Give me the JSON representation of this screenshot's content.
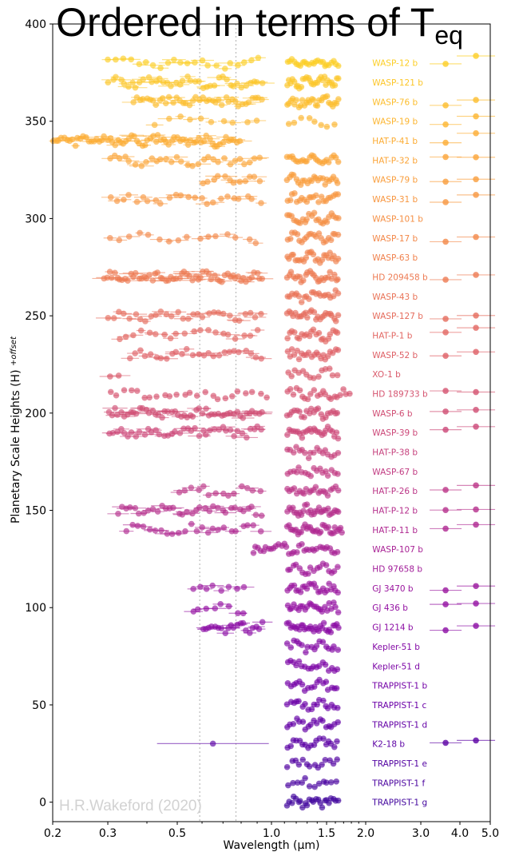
{
  "chart_data": {
    "type": "scatter",
    "title": "Ordered in terms of T",
    "title_subscript": "eq",
    "xlabel": "Wavelength (µm)",
    "ylabel": "Planetary Scale Heights (H)",
    "ylabel_subscript": "+offset",
    "watermark": "H.R.Wakeford (2020)",
    "x_scale": "log",
    "xlim": [
      0.2,
      5.0
    ],
    "ylim": [
      -10,
      400
    ],
    "x_ticks": [
      0.2,
      0.3,
      0.5,
      1.0,
      1.5,
      2.0,
      3.0,
      4.0,
      5.0
    ],
    "x_tick_labels": [
      "0.2",
      "0.3",
      "0.5",
      "1.0",
      "1.5",
      "2.0",
      "3.0",
      "4.0",
      "5.0"
    ],
    "y_ticks": [
      0,
      50,
      100,
      150,
      200,
      250,
      300,
      350,
      400
    ],
    "y_tick_labels": [
      "0",
      "50",
      "100",
      "150",
      "200",
      "250",
      "300",
      "350",
      "400"
    ],
    "grid": false,
    "reference_lines_x": [
      0.59,
      0.77
    ],
    "label_x": 2.1,
    "colormap": "plasma",
    "colormap_stops": [
      "#fcce25",
      "#fca636",
      "#f2844b",
      "#e16462",
      "#cc4778",
      "#b12a90",
      "#8f0da4",
      "#6a00a8",
      "#41049d"
    ],
    "spitzer_x": [
      3.6,
      4.5
    ],
    "series": [
      {
        "name": "WASP-12 b",
        "offset": 380,
        "segments": [
          [
            0.3,
            0.95,
            22
          ],
          [
            1.12,
            1.65,
            24
          ]
        ],
        "spitzer": true
      },
      {
        "name": "WASP-121 b",
        "offset": 370,
        "segments": [
          [
            0.3,
            0.95,
            40
          ],
          [
            1.12,
            1.65,
            30
          ]
        ],
        "spitzer": false
      },
      {
        "name": "WASP-76 b",
        "offset": 360,
        "segments": [
          [
            0.36,
            0.95,
            40
          ],
          [
            1.12,
            1.65,
            28
          ]
        ],
        "spitzer": true
      },
      {
        "name": "WASP-19 b",
        "offset": 350,
        "segments": [
          [
            0.42,
            0.95,
            10
          ],
          [
            1.12,
            1.65,
            8
          ]
        ],
        "spitzer": true
      },
      {
        "name": "HAT-P-41 b",
        "offset": 340,
        "segments": [
          [
            0.2,
            0.8,
            70
          ]
        ],
        "spitzer": true
      },
      {
        "name": "HAT-P-32 b",
        "offset": 330,
        "segments": [
          [
            0.3,
            0.95,
            30
          ],
          [
            1.12,
            1.65,
            24
          ]
        ],
        "spitzer": true
      },
      {
        "name": "WASP-79 b",
        "offset": 320,
        "segments": [
          [
            0.6,
            0.95,
            12
          ],
          [
            1.12,
            1.65,
            24
          ]
        ],
        "spitzer": true
      },
      {
        "name": "WASP-31 b",
        "offset": 310,
        "segments": [
          [
            0.3,
            0.95,
            24
          ],
          [
            1.12,
            1.65,
            22
          ]
        ],
        "spitzer": true
      },
      {
        "name": "WASP-101 b",
        "offset": 300,
        "segments": [
          [
            1.12,
            1.65,
            24
          ]
        ],
        "spitzer": false
      },
      {
        "name": "WASP-17 b",
        "offset": 290,
        "segments": [
          [
            0.3,
            0.95,
            16
          ],
          [
            1.12,
            1.65,
            22
          ]
        ],
        "spitzer": true
      },
      {
        "name": "WASP-63 b",
        "offset": 280,
        "segments": [
          [
            1.12,
            1.65,
            26
          ]
        ],
        "spitzer": false
      },
      {
        "name": "HD 209458 b",
        "offset": 270,
        "segments": [
          [
            0.29,
            0.95,
            60
          ],
          [
            1.12,
            1.65,
            26
          ]
        ],
        "spitzer": true
      },
      {
        "name": "WASP-43 b",
        "offset": 260,
        "segments": [
          [
            1.12,
            1.65,
            22
          ]
        ],
        "spitzer": false
      },
      {
        "name": "WASP-127 b",
        "offset": 250,
        "segments": [
          [
            0.3,
            0.95,
            30
          ],
          [
            1.12,
            1.65,
            26
          ]
        ],
        "spitzer": true
      },
      {
        "name": "HAT-P-1 b",
        "offset": 240,
        "segments": [
          [
            0.32,
            0.95,
            20
          ],
          [
            1.12,
            1.65,
            22
          ]
        ],
        "spitzer": true
      },
      {
        "name": "WASP-52 b",
        "offset": 230,
        "segments": [
          [
            0.35,
            0.95,
            26
          ],
          [
            1.12,
            1.65,
            22
          ]
        ],
        "spitzer": true
      },
      {
        "name": "XO-1 b",
        "offset": 220,
        "segments": [
          [
            0.3,
            0.35,
            2
          ],
          [
            1.12,
            1.65,
            14
          ]
        ],
        "spitzer": false
      },
      {
        "name": "HD 189733 b",
        "offset": 210,
        "segments": [
          [
            0.3,
            1.0,
            24
          ],
          [
            1.12,
            1.8,
            22
          ]
        ],
        "spitzer": true
      },
      {
        "name": "WASP-6 b",
        "offset": 200,
        "segments": [
          [
            0.3,
            0.95,
            50
          ],
          [
            1.12,
            1.65,
            22
          ]
        ],
        "spitzer": true
      },
      {
        "name": "WASP-39 b",
        "offset": 190,
        "segments": [
          [
            0.3,
            0.95,
            40
          ],
          [
            1.12,
            1.65,
            26
          ]
        ],
        "spitzer": true
      },
      {
        "name": "HAT-P-38 b",
        "offset": 180,
        "segments": [
          [
            1.12,
            1.65,
            18
          ]
        ],
        "spitzer": false
      },
      {
        "name": "WASP-67 b",
        "offset": 170,
        "segments": [
          [
            1.12,
            1.65,
            18
          ]
        ],
        "spitzer": false
      },
      {
        "name": "HAT-P-26 b",
        "offset": 160,
        "segments": [
          [
            0.5,
            0.95,
            14
          ],
          [
            1.12,
            1.65,
            22
          ]
        ],
        "spitzer": true
      },
      {
        "name": "HAT-P-12 b",
        "offset": 150,
        "segments": [
          [
            0.32,
            0.95,
            34
          ],
          [
            1.12,
            1.65,
            30
          ]
        ],
        "spitzer": true
      },
      {
        "name": "HAT-P-11 b",
        "offset": 140,
        "segments": [
          [
            0.34,
            0.95,
            24
          ],
          [
            1.12,
            1.7,
            32
          ]
        ],
        "spitzer": true
      },
      {
        "name": "WASP-107 b",
        "offset": 130,
        "segments": [
          [
            0.87,
            1.65,
            34
          ]
        ],
        "spitzer": false
      },
      {
        "name": "HD 97658 b",
        "offset": 120,
        "segments": [
          [
            1.12,
            1.65,
            18
          ]
        ],
        "spitzer": false
      },
      {
        "name": "GJ 3470 b",
        "offset": 110,
        "segments": [
          [
            0.55,
            0.85,
            8
          ],
          [
            1.12,
            1.65,
            24
          ]
        ],
        "spitzer": true
      },
      {
        "name": "GJ 436 b",
        "offset": 100,
        "segments": [
          [
            0.55,
            0.85,
            8
          ],
          [
            1.12,
            1.65,
            24
          ]
        ],
        "spitzer": true
      },
      {
        "name": "GJ 1214 b",
        "offset": 90,
        "segments": [
          [
            0.6,
            0.95,
            20
          ],
          [
            1.12,
            1.65,
            30
          ]
        ],
        "spitzer": true
      },
      {
        "name": "Kepler-51 b",
        "offset": 80,
        "segments": [
          [
            1.12,
            1.65,
            18
          ]
        ],
        "spitzer": false
      },
      {
        "name": "Kepler-51 d",
        "offset": 70,
        "segments": [
          [
            1.12,
            1.65,
            18
          ]
        ],
        "spitzer": false
      },
      {
        "name": "TRAPPIST-1 b",
        "offset": 60,
        "segments": [
          [
            1.12,
            1.65,
            18
          ]
        ],
        "spitzer": false
      },
      {
        "name": "TRAPPIST-1 c",
        "offset": 50,
        "segments": [
          [
            1.12,
            1.65,
            18
          ]
        ],
        "spitzer": false
      },
      {
        "name": "TRAPPIST-1 d",
        "offset": 40,
        "segments": [
          [
            1.12,
            1.65,
            18
          ]
        ],
        "spitzer": false
      },
      {
        "name": "K2-18 b",
        "offset": 30,
        "segments": [
          [
            0.65,
            0.65,
            1
          ],
          [
            1.12,
            1.65,
            18
          ]
        ],
        "spitzer": true
      },
      {
        "name": "TRAPPIST-1 e",
        "offset": 20,
        "segments": [
          [
            1.12,
            1.65,
            14
          ]
        ],
        "spitzer": false
      },
      {
        "name": "TRAPPIST-1 f",
        "offset": 10,
        "segments": [
          [
            1.12,
            1.65,
            12
          ]
        ],
        "spitzer": false
      },
      {
        "name": "TRAPPIST-1 g",
        "offset": 0,
        "segments": [
          [
            1.12,
            1.65,
            24
          ]
        ],
        "spitzer": false
      }
    ]
  }
}
